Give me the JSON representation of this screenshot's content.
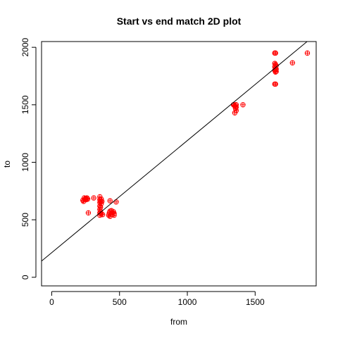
{
  "chart_data": {
    "type": "scatter",
    "title": "Start vs end match 2D plot",
    "xlabel": "from",
    "ylabel": "to",
    "xlim": [
      -75,
      1950
    ],
    "ylim": [
      -75,
      2050
    ],
    "x_ticks": [
      0,
      500,
      1000,
      1500
    ],
    "y_ticks": [
      0,
      500,
      1000,
      1500,
      2000
    ],
    "marker": "circle-plus",
    "marker_color": "#ff0000",
    "line_color": "#000000",
    "fit_line": {
      "intercept": 214,
      "slope": 0.975
    },
    "points": [
      {
        "x": 230,
        "y": 670
      },
      {
        "x": 235,
        "y": 660
      },
      {
        "x": 240,
        "y": 690
      },
      {
        "x": 245,
        "y": 680
      },
      {
        "x": 250,
        "y": 685
      },
      {
        "x": 255,
        "y": 675
      },
      {
        "x": 260,
        "y": 690
      },
      {
        "x": 265,
        "y": 680
      },
      {
        "x": 270,
        "y": 560
      },
      {
        "x": 310,
        "y": 690
      },
      {
        "x": 355,
        "y": 700
      },
      {
        "x": 355,
        "y": 675
      },
      {
        "x": 355,
        "y": 650
      },
      {
        "x": 355,
        "y": 620
      },
      {
        "x": 355,
        "y": 590
      },
      {
        "x": 355,
        "y": 560
      },
      {
        "x": 355,
        "y": 540
      },
      {
        "x": 360,
        "y": 660
      },
      {
        "x": 360,
        "y": 610
      },
      {
        "x": 360,
        "y": 570
      },
      {
        "x": 365,
        "y": 680
      },
      {
        "x": 365,
        "y": 640
      },
      {
        "x": 365,
        "y": 550
      },
      {
        "x": 370,
        "y": 660
      },
      {
        "x": 375,
        "y": 545
      },
      {
        "x": 420,
        "y": 540
      },
      {
        "x": 425,
        "y": 560
      },
      {
        "x": 430,
        "y": 530
      },
      {
        "x": 430,
        "y": 575
      },
      {
        "x": 435,
        "y": 550
      },
      {
        "x": 440,
        "y": 580
      },
      {
        "x": 445,
        "y": 545
      },
      {
        "x": 450,
        "y": 560
      },
      {
        "x": 455,
        "y": 570
      },
      {
        "x": 460,
        "y": 555
      },
      {
        "x": 460,
        "y": 540
      },
      {
        "x": 430,
        "y": 665
      },
      {
        "x": 475,
        "y": 655
      },
      {
        "x": 1340,
        "y": 1500
      },
      {
        "x": 1345,
        "y": 1500
      },
      {
        "x": 1350,
        "y": 1490
      },
      {
        "x": 1350,
        "y": 1430
      },
      {
        "x": 1355,
        "y": 1470
      },
      {
        "x": 1358,
        "y": 1500
      },
      {
        "x": 1360,
        "y": 1450
      },
      {
        "x": 1360,
        "y": 1480
      },
      {
        "x": 1360,
        "y": 1500
      },
      {
        "x": 1410,
        "y": 1500
      },
      {
        "x": 1645,
        "y": 1950
      },
      {
        "x": 1645,
        "y": 1860
      },
      {
        "x": 1645,
        "y": 1830
      },
      {
        "x": 1645,
        "y": 1800
      },
      {
        "x": 1645,
        "y": 1680
      },
      {
        "x": 1650,
        "y": 1950
      },
      {
        "x": 1650,
        "y": 1850
      },
      {
        "x": 1650,
        "y": 1815
      },
      {
        "x": 1650,
        "y": 1785
      },
      {
        "x": 1650,
        "y": 1680
      },
      {
        "x": 1655,
        "y": 1840
      },
      {
        "x": 1655,
        "y": 1810
      },
      {
        "x": 1655,
        "y": 1790
      },
      {
        "x": 1775,
        "y": 1865
      },
      {
        "x": 1885,
        "y": 1950
      }
    ]
  }
}
